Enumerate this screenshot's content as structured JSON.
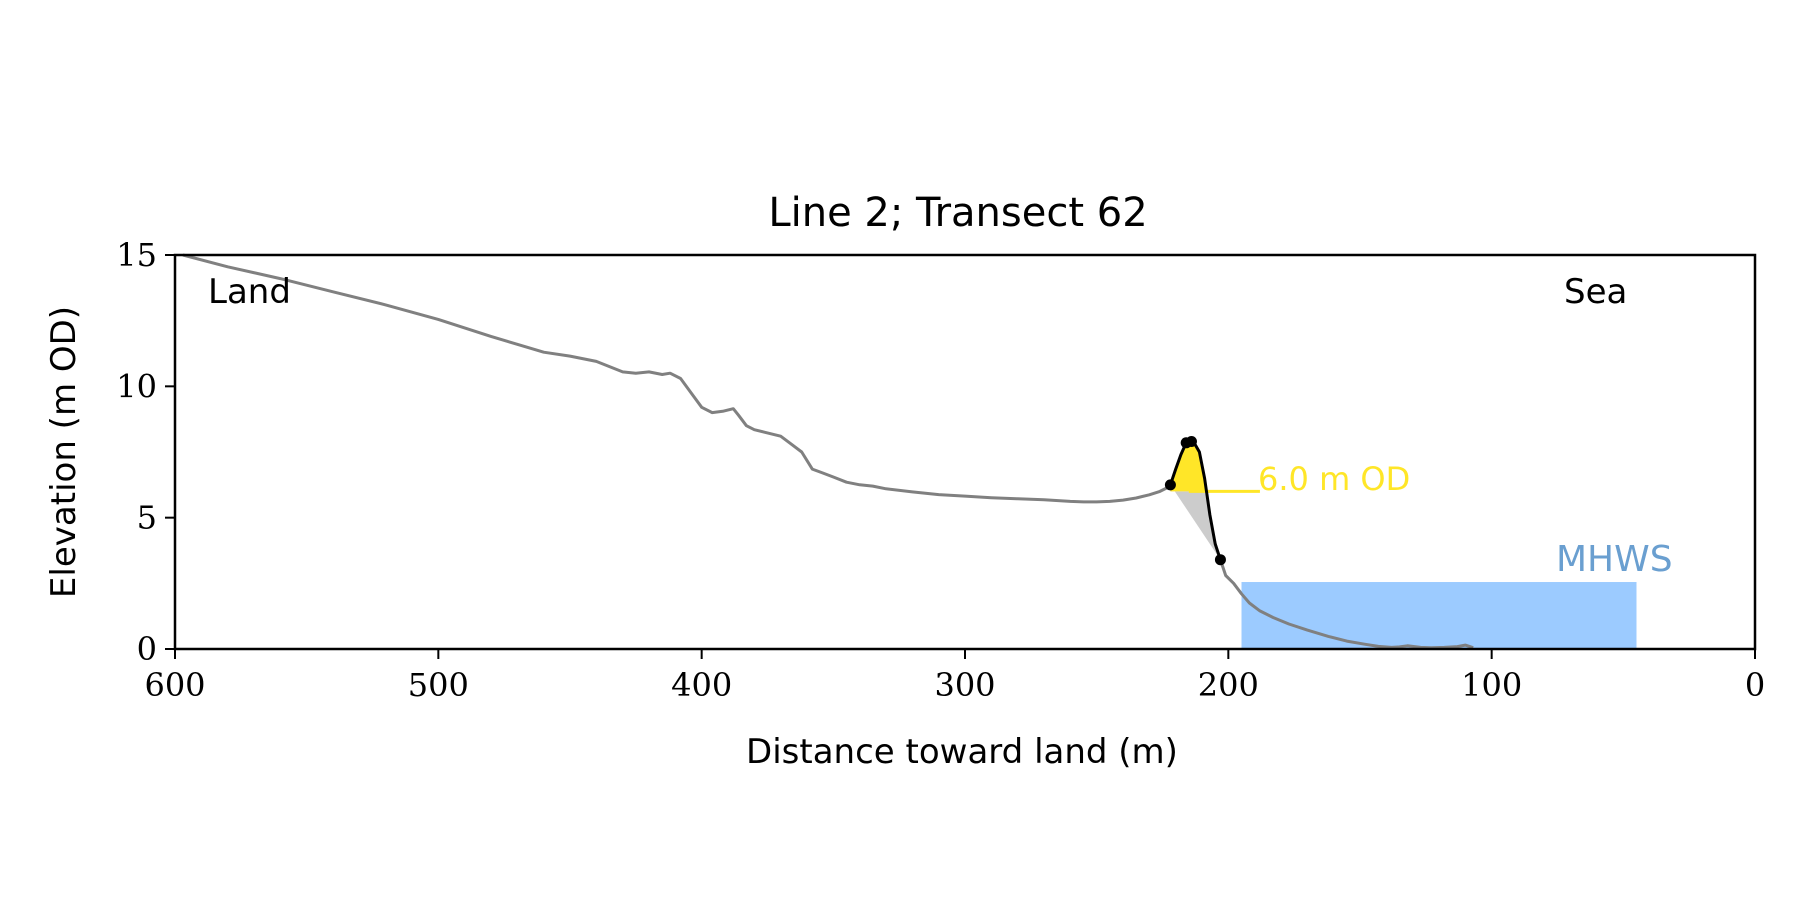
{
  "chart_data": {
    "type": "line",
    "title": "Line 2; Transect 62",
    "xlabel": "Distance toward land (m)",
    "ylabel": "Elevation (m OD)",
    "xlim": [
      600,
      0
    ],
    "ylim": [
      0,
      15
    ],
    "x_ticks": [
      600,
      500,
      400,
      300,
      200,
      100,
      0
    ],
    "y_ticks": [
      0,
      5,
      10,
      15
    ],
    "grid": false,
    "annotations": {
      "land_label": "Land",
      "sea_label": "Sea",
      "threshold_label": "6.0 m OD",
      "mhws_label": "MHWS"
    },
    "colors": {
      "profile": "#808080",
      "dune": "#000000",
      "dune_fill": "#ffe628",
      "dune_base_fill": "#cccccc",
      "threshold": "#ffe628",
      "mhws_fill": "#9ccbff",
      "mhws_text": "#6a9fd0"
    },
    "threshold_elevation": 6.0,
    "threshold_line_x": [
      215,
      188
    ],
    "mhws": {
      "elevation": 2.55,
      "x_range": [
        195,
        45
      ]
    },
    "profile": {
      "x": [
        597,
        580,
        560,
        540,
        520,
        500,
        480,
        470,
        460,
        450,
        440,
        430,
        425,
        420,
        415,
        412,
        408,
        404,
        400,
        396,
        392,
        388,
        386,
        383,
        380,
        376,
        370,
        366,
        362,
        358,
        354,
        350,
        345,
        340,
        335,
        330,
        320,
        310,
        300,
        290,
        280,
        270,
        260,
        255,
        250,
        245,
        240,
        235,
        230,
        226,
        222
      ],
      "y": [
        15.0,
        14.55,
        14.1,
        13.6,
        13.1,
        12.55,
        11.9,
        11.6,
        11.3,
        11.15,
        10.95,
        10.55,
        10.5,
        10.55,
        10.45,
        10.5,
        10.3,
        9.75,
        9.2,
        9.0,
        9.05,
        9.15,
        8.9,
        8.5,
        8.35,
        8.25,
        8.1,
        7.8,
        7.5,
        6.85,
        6.7,
        6.55,
        6.35,
        6.25,
        6.2,
        6.1,
        5.98,
        5.88,
        5.82,
        5.76,
        5.72,
        5.68,
        5.62,
        5.6,
        5.6,
        5.62,
        5.67,
        5.75,
        5.87,
        6.0,
        6.2
      ]
    },
    "dune_profile": {
      "x": [
        222,
        220,
        218,
        216,
        215,
        213,
        211,
        209,
        207,
        205,
        203
      ],
      "y": [
        6.25,
        6.85,
        7.4,
        7.85,
        7.9,
        7.85,
        7.5,
        6.5,
        5.1,
        4.0,
        3.4
      ]
    },
    "dune_points": [
      {
        "x": 222,
        "y": 6.25
      },
      {
        "x": 216,
        "y": 7.85
      },
      {
        "x": 214,
        "y": 7.9
      },
      {
        "x": 203,
        "y": 3.4
      }
    ],
    "seaward_profile": {
      "x": [
        203,
        201,
        198,
        195,
        192,
        188,
        183,
        177,
        170,
        162,
        155,
        148,
        143,
        138,
        135,
        132,
        127,
        123,
        118,
        113,
        110,
        107
      ],
      "y": [
        3.4,
        2.8,
        2.5,
        2.1,
        1.75,
        1.45,
        1.2,
        0.95,
        0.72,
        0.48,
        0.3,
        0.18,
        0.1,
        0.06,
        0.08,
        0.12,
        0.06,
        0.05,
        0.06,
        0.09,
        0.15,
        0.05
      ]
    }
  }
}
